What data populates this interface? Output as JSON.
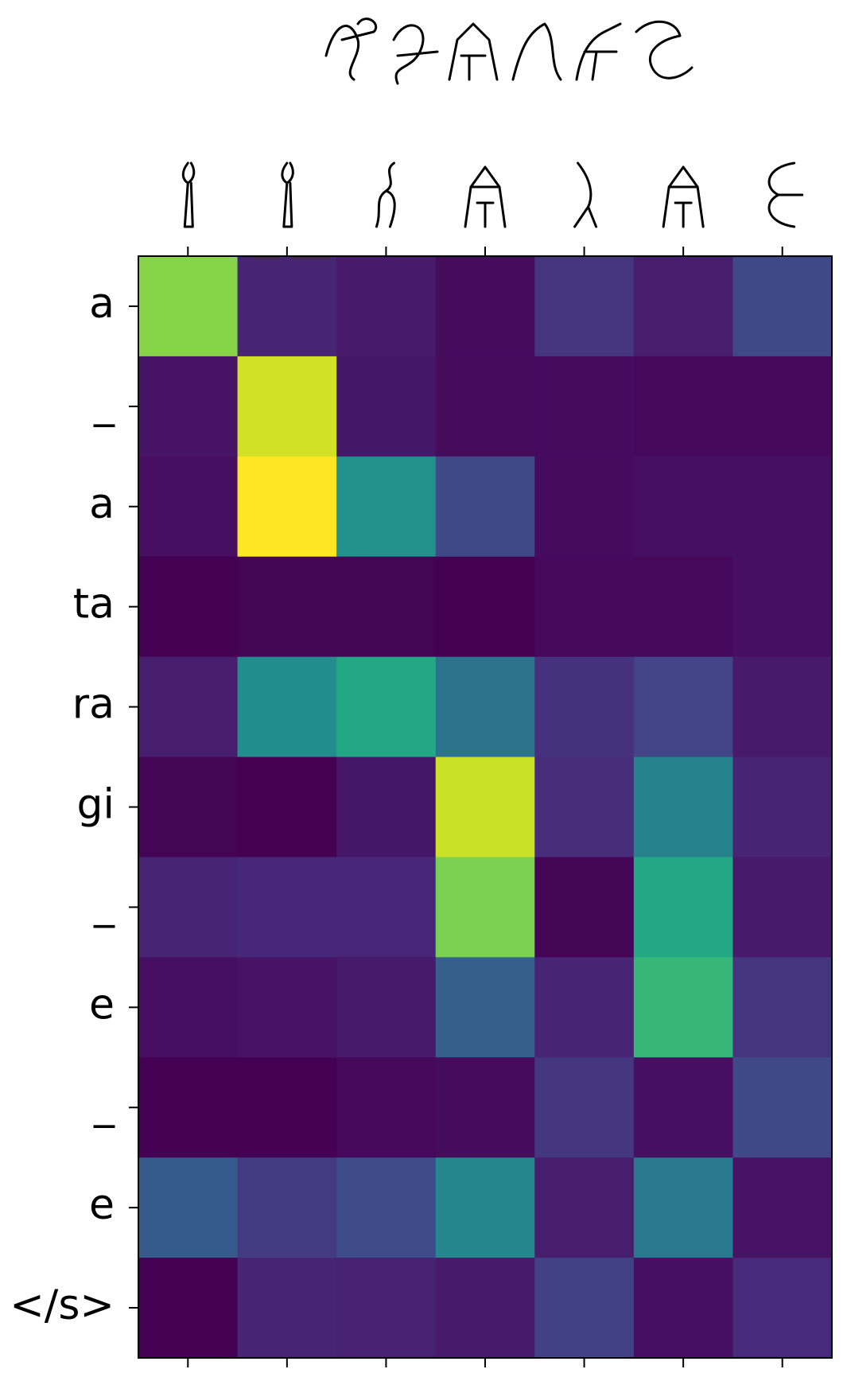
{
  "chart_data": {
    "type": "heatmap",
    "x_categories": [
      null,
      null,
      null,
      null,
      null,
      null,
      null
    ],
    "y_categories": [
      "a",
      "_",
      "a",
      "ta",
      "ra",
      "gi",
      "_",
      "e",
      "_",
      "e",
      "</s>"
    ],
    "colormap": [
      "#440154",
      "#482475",
      "#414487",
      "#355f8d",
      "#2a788e",
      "#21918c",
      "#22a884",
      "#44bf70",
      "#7ad151",
      "#bddf26",
      "#fde725"
    ],
    "values": [
      [
        0.82,
        0.1,
        0.07,
        0.03,
        0.15,
        0.08,
        0.22
      ],
      [
        0.05,
        0.93,
        0.06,
        0.03,
        0.03,
        0.02,
        0.02
      ],
      [
        0.04,
        1.0,
        0.5,
        0.22,
        0.03,
        0.04,
        0.04
      ],
      [
        0.0,
        0.01,
        0.01,
        0.0,
        0.02,
        0.02,
        0.04
      ],
      [
        0.08,
        0.48,
        0.6,
        0.38,
        0.14,
        0.2,
        0.07
      ],
      [
        0.01,
        0.0,
        0.06,
        0.92,
        0.13,
        0.44,
        0.1
      ],
      [
        0.1,
        0.11,
        0.11,
        0.8,
        0.01,
        0.6,
        0.07
      ],
      [
        0.04,
        0.05,
        0.07,
        0.3,
        0.1,
        0.66,
        0.15
      ],
      [
        0.0,
        0.0,
        0.02,
        0.03,
        0.16,
        0.04,
        0.22
      ],
      [
        0.28,
        0.17,
        0.23,
        0.46,
        0.08,
        0.4,
        0.05
      ],
      [
        0.0,
        0.1,
        0.09,
        0.07,
        0.19,
        0.04,
        0.12
      ]
    ]
  }
}
